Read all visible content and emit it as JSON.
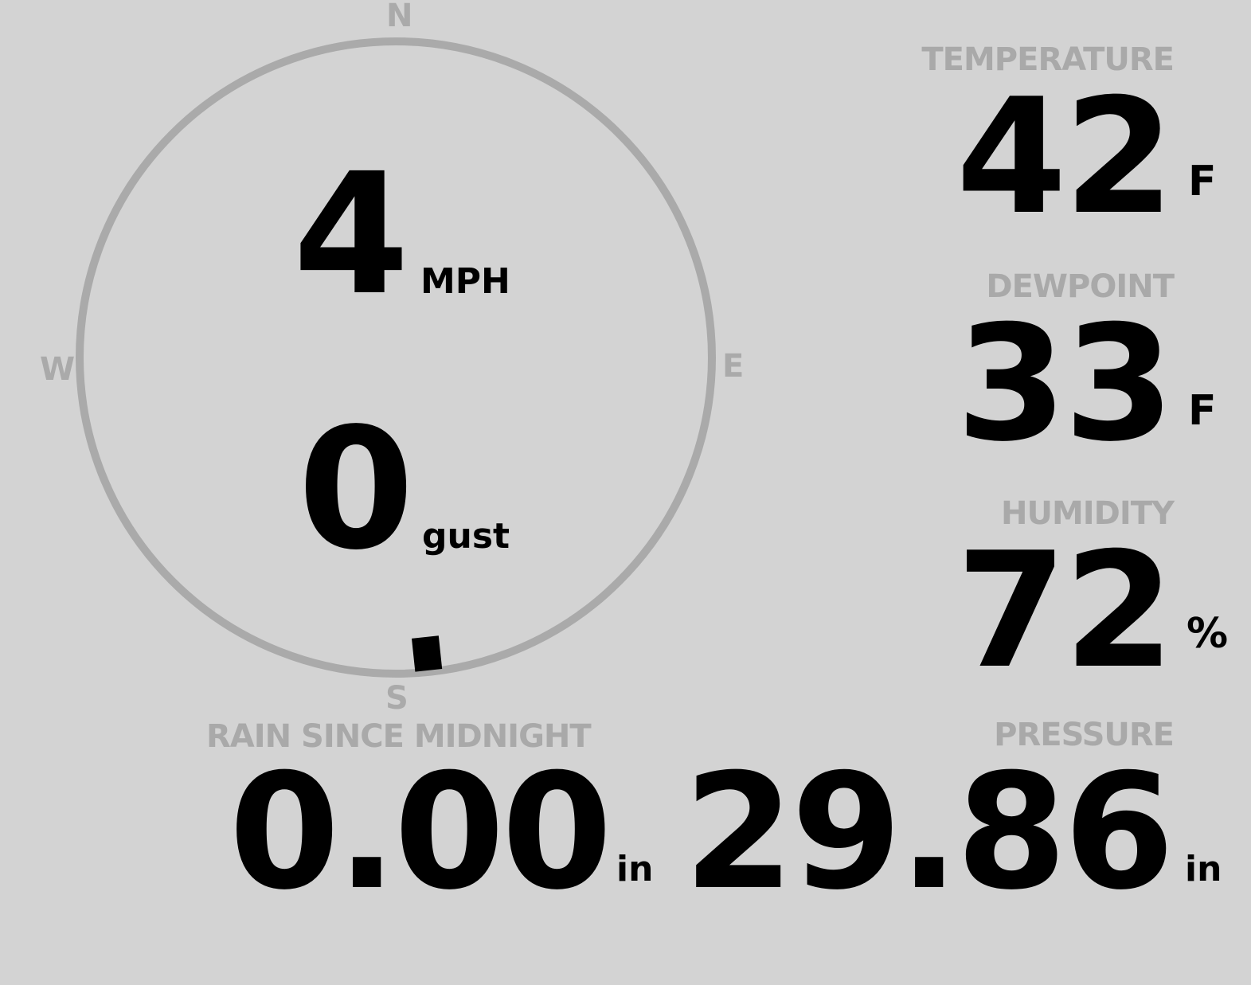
{
  "colors": {
    "background": "#d3d3d3",
    "label": "#a9a9a9",
    "value": "#000000",
    "compass_ring": "#aaaaaa"
  },
  "wind": {
    "compass": {
      "north": "N",
      "south": "S",
      "east": "E",
      "west": "W"
    },
    "direction_degrees": 174,
    "speed": "4",
    "speed_unit": "MPH",
    "gust": "0",
    "gust_unit": "gust"
  },
  "temperature": {
    "label": "TEMPERATURE",
    "value": "42",
    "unit": "F"
  },
  "dewpoint": {
    "label": "DEWPOINT",
    "value": "33",
    "unit": "F"
  },
  "humidity": {
    "label": "HUMIDITY",
    "value": "72",
    "unit": "%"
  },
  "rain": {
    "label": "RAIN SINCE MIDNIGHT",
    "value": "0.00",
    "unit": "in"
  },
  "pressure": {
    "label": "PRESSURE",
    "value": "29.86",
    "unit": "in"
  }
}
